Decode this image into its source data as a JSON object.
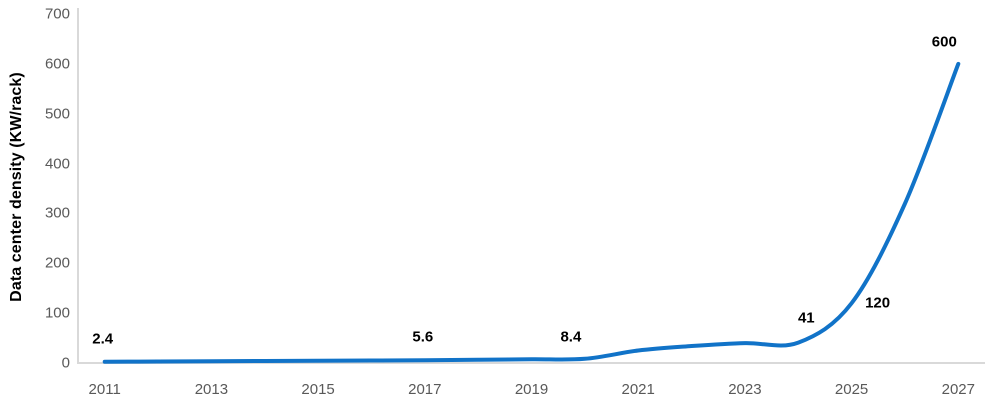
{
  "chart_data": {
    "type": "line",
    "title": "",
    "xlabel": "",
    "ylabel": "Data center density (KW/rack)",
    "x": [
      2011,
      2012,
      2013,
      2014,
      2015,
      2016,
      2017,
      2018,
      2019,
      2020,
      2021,
      2022,
      2023,
      2024,
      2025,
      2026,
      2027
    ],
    "values": [
      2.4,
      3.0,
      3.5,
      4.0,
      4.5,
      5.0,
      5.6,
      6.5,
      7.5,
      8.4,
      25,
      34,
      40,
      41,
      120,
      320,
      600
    ],
    "ylim": [
      0,
      700
    ],
    "y_ticks": [
      700,
      600,
      500,
      400,
      300,
      200,
      100,
      0
    ],
    "x_ticks": [
      2011,
      2013,
      2015,
      2017,
      2019,
      2021,
      2023,
      2025,
      2027
    ],
    "grid": false,
    "legend": false,
    "annotations": [
      {
        "year": 2011,
        "label": "2.4",
        "placement": "above"
      },
      {
        "year": 2017,
        "label": "5.6",
        "placement": "above"
      },
      {
        "year": 2020,
        "label": "8.4",
        "placement": "above-left"
      },
      {
        "year": 2024,
        "label": "41",
        "placement": "above-right"
      },
      {
        "year": 2025,
        "label": "120",
        "placement": "right"
      },
      {
        "year": 2027,
        "label": "600",
        "placement": "above-left"
      }
    ],
    "colors": {
      "line": "#1173c8",
      "axis": "#d9d9d9",
      "tick_text": "#595959",
      "data_label_text": "#000000",
      "background": "#ffffff"
    }
  }
}
